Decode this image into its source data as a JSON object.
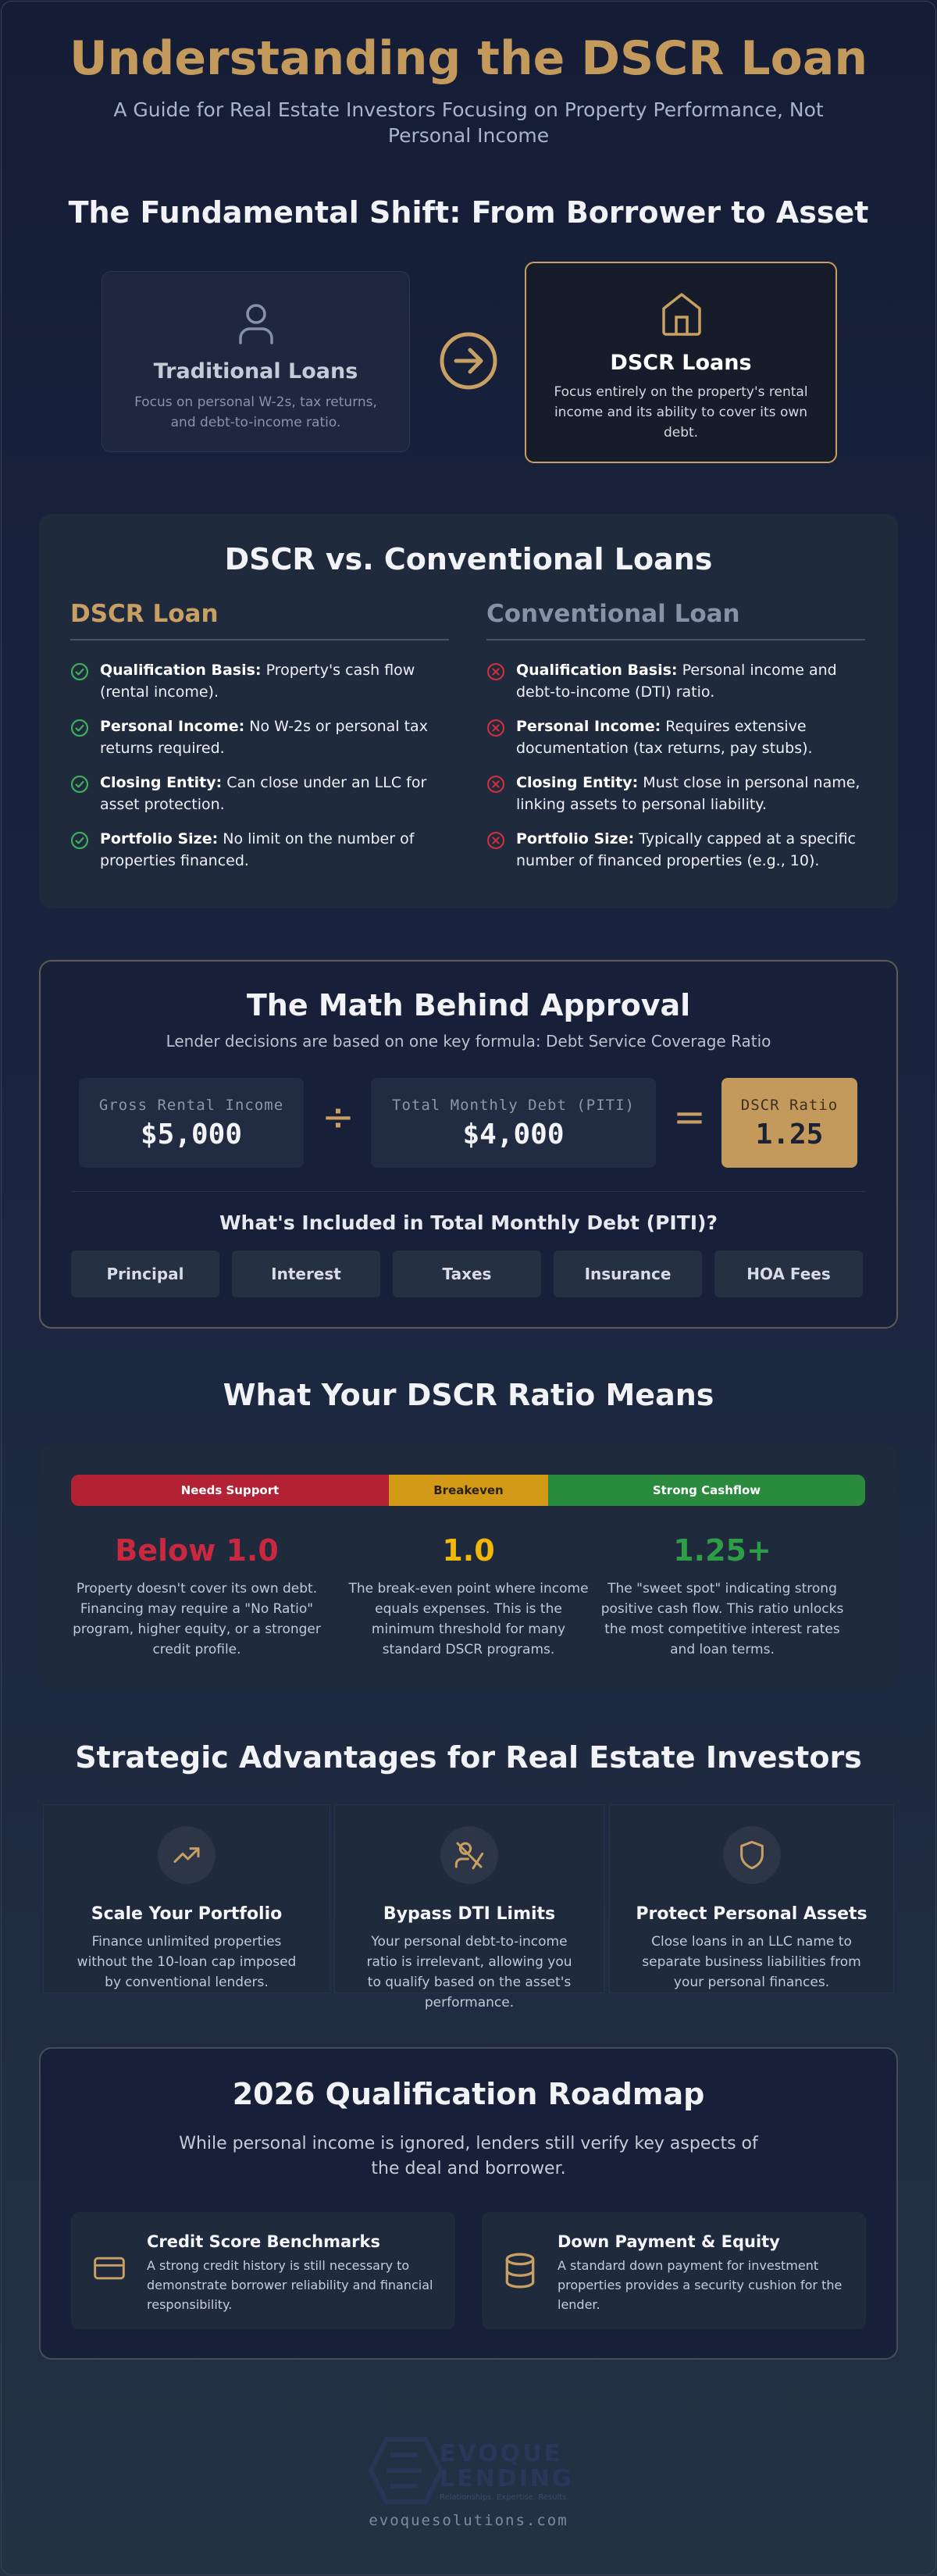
{
  "header": {
    "title": "Understanding the DSCR Loan",
    "subtitle": "A Guide for Real Estate Investors Focusing on Property Performance, Not Personal Income"
  },
  "shift": {
    "title": "The Fundamental Shift: From Borrower to Asset",
    "cards": [
      {
        "title": "Traditional Loans",
        "description": "Focus on personal W-2s, tax returns, and debt-to-income ratio."
      },
      {
        "title": "DSCR Loans",
        "description": "Focus entirely on the property's rental income and its ability to cover its own debt."
      }
    ]
  },
  "comparison": {
    "title": "DSCR vs. Conventional Loans",
    "columns": [
      {
        "title": "DSCR Loan",
        "items": [
          {
            "label": "Qualification Basis:",
            "text": "Property's cash flow (rental income)."
          },
          {
            "label": "Personal Income:",
            "text": "No W-2s or personal tax returns required."
          },
          {
            "label": "Closing Entity:",
            "text": "Can close under an LLC for asset protection."
          },
          {
            "label": "Portfolio Size:",
            "text": "No limit on the number of properties financed."
          }
        ]
      },
      {
        "title": "Conventional Loan",
        "items": [
          {
            "label": "Qualification Basis:",
            "text": "Personal income and debt-to-income (DTI) ratio."
          },
          {
            "label": "Personal Income:",
            "text": "Requires extensive documentation (tax returns, pay stubs)."
          },
          {
            "label": "Closing Entity:",
            "text": "Must close in personal name, linking assets to personal liability."
          },
          {
            "label": "Portfolio Size:",
            "text": "Typically capped at a specific number of financed properties (e.g., 10)."
          }
        ]
      }
    ]
  },
  "math": {
    "title": "The Math Behind Approval",
    "subtitle": "Lender decisions are based on one key formula: Debt Service Coverage Ratio",
    "formula": [
      {
        "label": "Gross Rental Income",
        "value": "$5,000"
      },
      {
        "label": "Total Monthly Debt (PITI)",
        "value": "$4,000"
      },
      {
        "label": "DSCR Ratio",
        "value": "1.25"
      }
    ],
    "operators": [
      "÷",
      "="
    ],
    "debt_title": "What's Included in Total Monthly Debt (PITI)?",
    "debt_items": [
      "Principal",
      "Interest",
      "Taxes",
      "Insurance",
      "HOA Fees"
    ]
  },
  "ratio": {
    "title": "What Your DSCR Ratio Means",
    "bar": [
      "Needs Support",
      "Breakeven",
      "Strong Cashflow"
    ],
    "tiers": [
      {
        "value": "Below 1.0",
        "description": "Property doesn't cover its own debt. Financing may require a \"No Ratio\" program, higher equity, or a stronger credit profile."
      },
      {
        "value": "1.0",
        "description": "The break-even point where income equals expenses. This is the minimum threshold for many standard DSCR programs."
      },
      {
        "value": "1.25+",
        "description": "The \"sweet spot\" indicating strong positive cash flow. This ratio unlocks the most competitive interest rates and loan terms."
      }
    ]
  },
  "advantages": {
    "title": "Strategic Advantages for Real Estate Investors",
    "items": [
      {
        "title": "Scale Your Portfolio",
        "description": "Finance unlimited properties without the 10-loan cap imposed by conventional lenders."
      },
      {
        "title": "Bypass DTI Limits",
        "description": "Your personal debt-to-income ratio is irrelevant, allowing you to qualify based on the asset's performance."
      },
      {
        "title": "Protect Personal Assets",
        "description": "Close loans in an LLC name to separate business liabilities from your personal finances."
      }
    ]
  },
  "roadmap": {
    "title": "2026 Qualification Roadmap",
    "intro": "While personal income is ignored, lenders still verify key aspects of the deal and borrower.",
    "items": [
      {
        "title": "Credit Score Benchmarks",
        "description": "A strong credit history is still necessary to demonstrate borrower reliability and financial responsibility."
      },
      {
        "title": "Down Payment & Equity",
        "description": "A standard down payment for investment properties provides a security cushion for the lender."
      }
    ]
  },
  "footer": {
    "logo_name": "EVOQUE",
    "logo_sub": "LENDING",
    "tagline": "Relationships. Expertise. Results.",
    "url": "evoquesolutions.com"
  }
}
